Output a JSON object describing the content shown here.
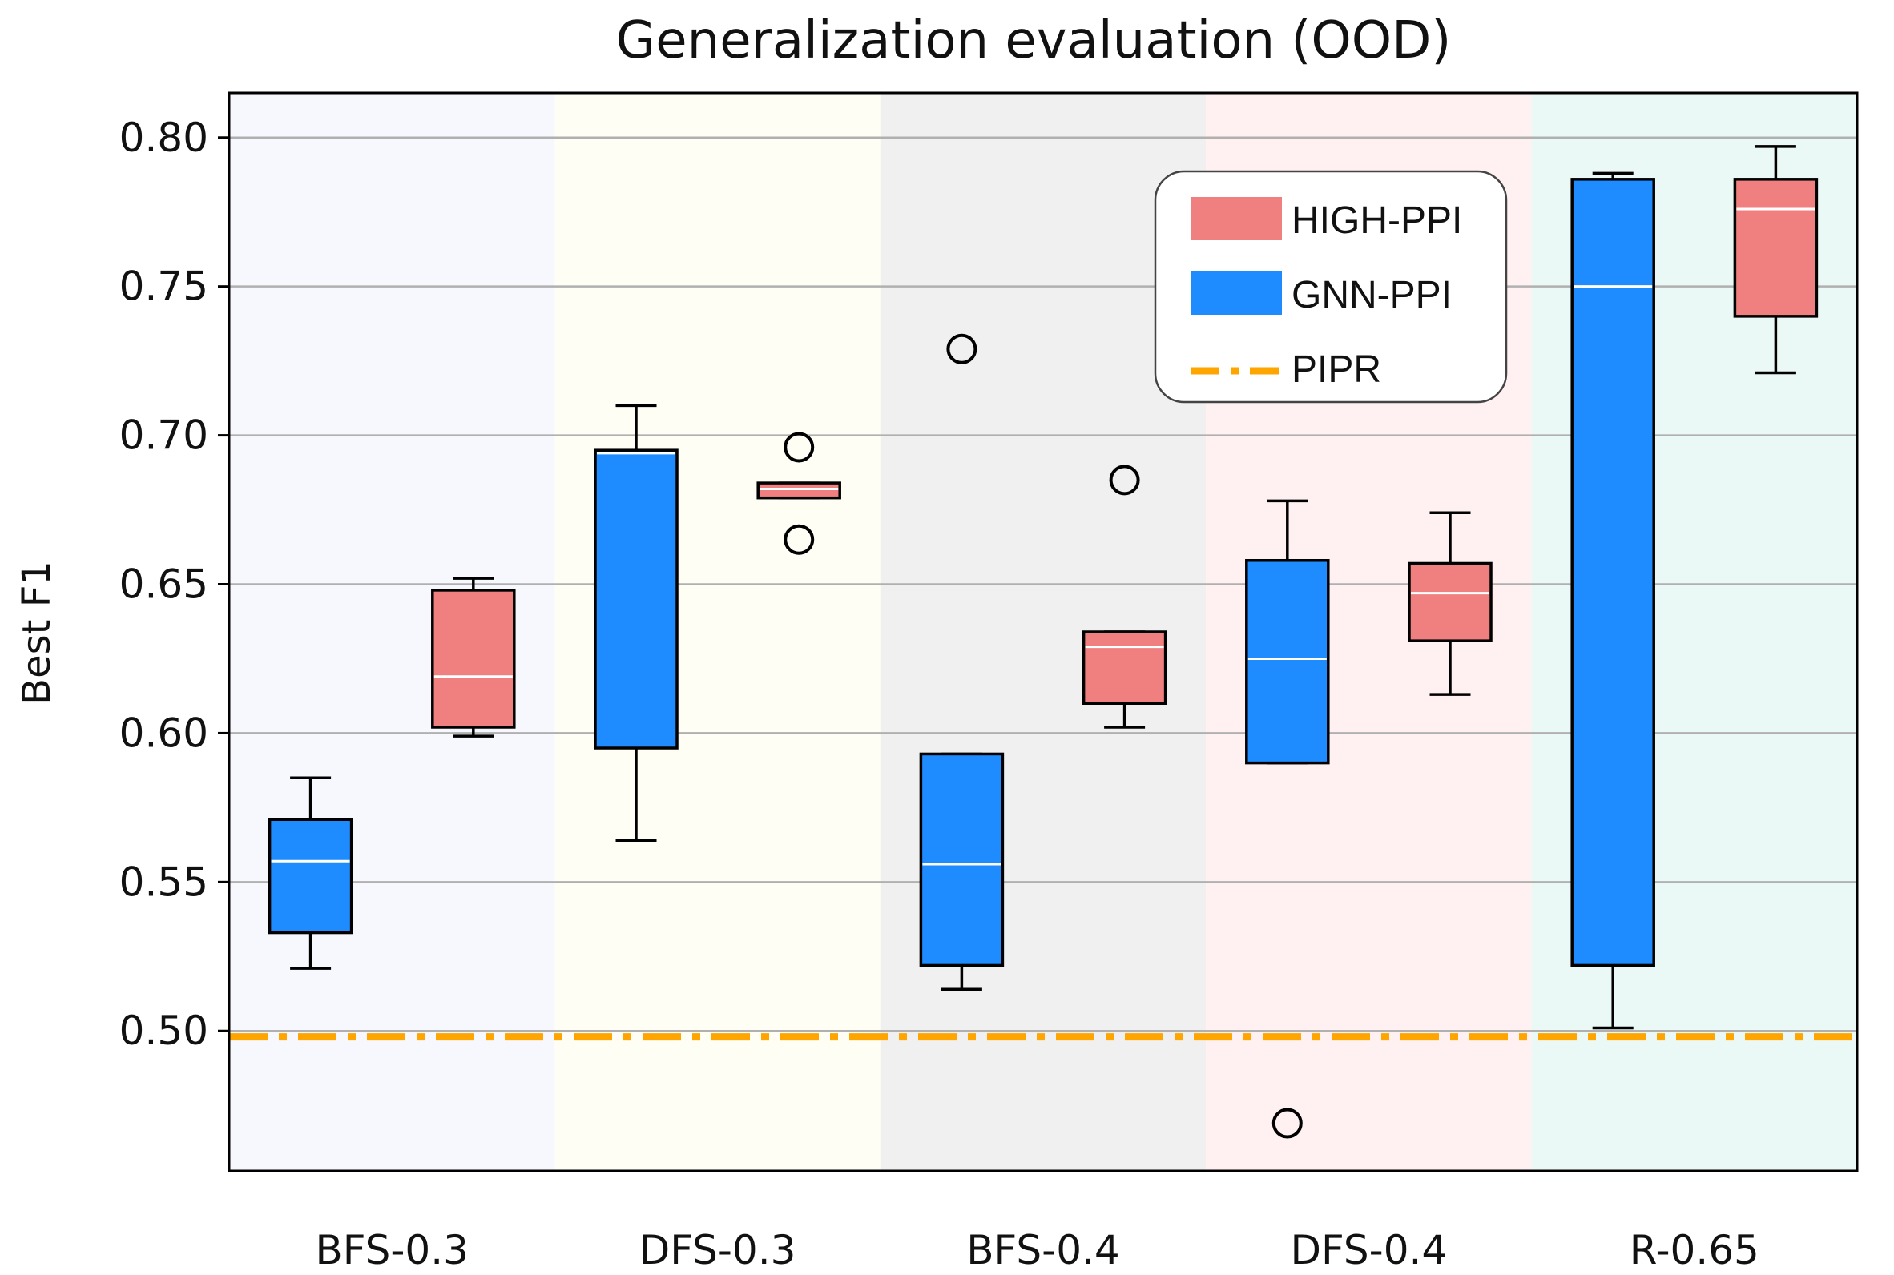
{
  "chart_data": {
    "type": "box",
    "title": "Generalization evaluation (OOD)",
    "xlabel": "",
    "ylabel": "Best F1",
    "ylim": [
      0.453,
      0.815
    ],
    "yticks": [
      "0.50",
      "0.55",
      "0.60",
      "0.65",
      "0.70",
      "0.75",
      "0.80"
    ],
    "grid": "horizontal",
    "legend_position": "top-right",
    "categories": [
      "BFS-0.3",
      "DFS-0.3",
      "BFS-0.4",
      "DFS-0.4",
      "R-0.65"
    ],
    "band_colors": [
      "#f7f7fe",
      "#fefef5",
      "#f0f0f0",
      "#fff1f1",
      "#ebf9f6"
    ],
    "series": [
      {
        "name": "GNN-PPI",
        "color": "#1e8bff",
        "boxes": [
          {
            "whisker_low": 0.521,
            "q1": 0.533,
            "median": 0.557,
            "q3": 0.571,
            "whisker_high": 0.585,
            "fliers": []
          },
          {
            "whisker_low": 0.564,
            "q1": 0.595,
            "median": 0.694,
            "q3": 0.695,
            "whisker_high": 0.71,
            "fliers": []
          },
          {
            "whisker_low": 0.514,
            "q1": 0.522,
            "median": 0.556,
            "q3": 0.593,
            "whisker_high": 0.593,
            "fliers": [
              0.729
            ]
          },
          {
            "whisker_low": 0.59,
            "q1": 0.59,
            "median": 0.625,
            "q3": 0.658,
            "whisker_high": 0.678,
            "fliers": [
              0.469
            ]
          },
          {
            "whisker_low": 0.501,
            "q1": 0.522,
            "median": 0.75,
            "q3": 0.786,
            "whisker_high": 0.788,
            "fliers": []
          }
        ]
      },
      {
        "name": "HIGH-PPI",
        "color": "#f08080",
        "boxes": [
          {
            "whisker_low": 0.599,
            "q1": 0.602,
            "median": 0.619,
            "q3": 0.648,
            "whisker_high": 0.652,
            "fliers": []
          },
          {
            "whisker_low": 0.679,
            "q1": 0.679,
            "median": 0.682,
            "q3": 0.684,
            "whisker_high": 0.684,
            "fliers": [
              0.696,
              0.665
            ]
          },
          {
            "whisker_low": 0.602,
            "q1": 0.61,
            "median": 0.629,
            "q3": 0.634,
            "whisker_high": 0.634,
            "fliers": [
              0.685
            ]
          },
          {
            "whisker_low": 0.613,
            "q1": 0.631,
            "median": 0.647,
            "q3": 0.657,
            "whisker_high": 0.674,
            "fliers": []
          },
          {
            "whisker_low": 0.721,
            "q1": 0.74,
            "median": 0.776,
            "q3": 0.786,
            "whisker_high": 0.797,
            "fliers": []
          }
        ]
      }
    ],
    "reference_lines": [
      {
        "name": "PIPR",
        "value": 0.498,
        "color": "#ffa500",
        "style": "dash-dot"
      }
    ]
  }
}
